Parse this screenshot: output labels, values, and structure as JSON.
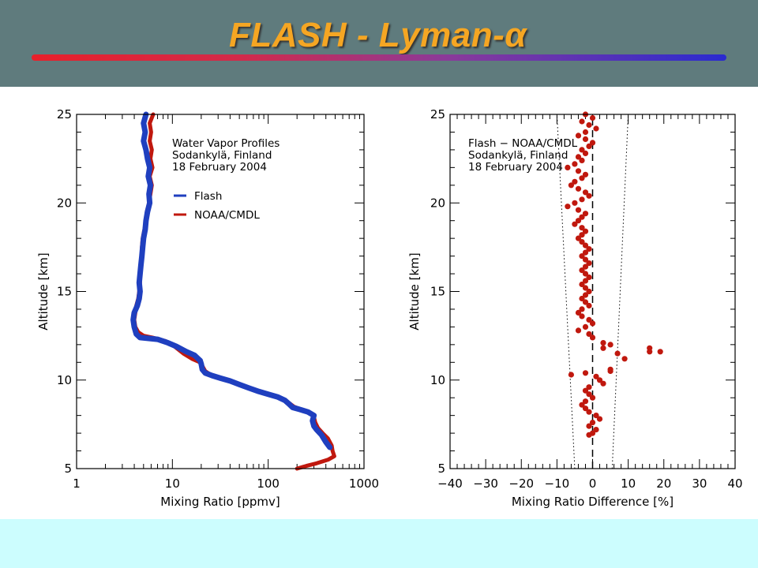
{
  "slide": {
    "title": "FLASH - Lyman-α",
    "colors": {
      "header_bg": "#5f7b7d",
      "title": "#f5a623",
      "footer_bg": "#ccfdfe",
      "flash": "#1f3fbf",
      "noaa": "#c0180e"
    }
  },
  "chart_data": [
    {
      "type": "line",
      "title": "",
      "annotation": [
        "Water Vapor Profiles",
        "Sodankylä, Finland",
        "18 February 2004"
      ],
      "xlabel": "Mixing Ratio [ppmv]",
      "ylabel": "Altitude [km]",
      "xscale": "log",
      "xlim": [
        1,
        1000
      ],
      "ylim": [
        5,
        25
      ],
      "xticks": [
        1,
        10,
        100,
        1000
      ],
      "xtick_labels": [
        "1",
        "10",
        "100",
        "1000"
      ],
      "yticks": [
        5,
        10,
        15,
        20,
        25
      ],
      "ytick_labels": [
        "5",
        "10",
        "15",
        "20",
        "25"
      ],
      "legend": "upper-left inside",
      "series": [
        {
          "name": "Flash",
          "color": "#1f3fbf",
          "points": [
            [
              5.3,
              25
            ],
            [
              5.0,
              24.5
            ],
            [
              5.2,
              24
            ],
            [
              5.0,
              23.5
            ],
            [
              5.3,
              23
            ],
            [
              5.5,
              22.5
            ],
            [
              5.8,
              22
            ],
            [
              5.6,
              21.5
            ],
            [
              5.9,
              21
            ],
            [
              5.7,
              20.5
            ],
            [
              5.8,
              20
            ],
            [
              5.5,
              19.5
            ],
            [
              5.3,
              19
            ],
            [
              5.2,
              18.5
            ],
            [
              5.0,
              18
            ],
            [
              4.9,
              17.5
            ],
            [
              4.8,
              17
            ],
            [
              4.7,
              16.5
            ],
            [
              4.6,
              16
            ],
            [
              4.5,
              15.5
            ],
            [
              4.6,
              15
            ],
            [
              4.5,
              14.6
            ],
            [
              4.3,
              14.2
            ],
            [
              4.0,
              13.8
            ],
            [
              3.9,
              13.4
            ],
            [
              4.0,
              13
            ],
            [
              4.2,
              12.6
            ],
            [
              4.6,
              12.4
            ],
            [
              7.0,
              12.3
            ],
            [
              9.0,
              12.1
            ],
            [
              11.0,
              11.9
            ],
            [
              14,
              11.6
            ],
            [
              17,
              11.4
            ],
            [
              19.5,
              11.1
            ],
            [
              20,
              10.9
            ],
            [
              20.5,
              10.6
            ],
            [
              22,
              10.4
            ],
            [
              26,
              10.25
            ],
            [
              32,
              10.1
            ],
            [
              40,
              9.95
            ],
            [
              50,
              9.75
            ],
            [
              63,
              9.55
            ],
            [
              80,
              9.35
            ],
            [
              100,
              9.2
            ],
            [
              125,
              9.05
            ],
            [
              150,
              8.85
            ],
            [
              165,
              8.65
            ],
            [
              180,
              8.45
            ],
            [
              210,
              8.35
            ],
            [
              260,
              8.2
            ],
            [
              300,
              8.0
            ],
            [
              290,
              7.7
            ],
            [
              300,
              7.4
            ],
            [
              320,
              7.2
            ],
            [
              360,
              6.9
            ],
            [
              400,
              6.5
            ],
            [
              440,
              6.2
            ]
          ]
        },
        {
          "name": "NOAA/CMDL",
          "color": "#c0180e",
          "points": [
            [
              6.3,
              25
            ],
            [
              5.8,
              24.5
            ],
            [
              6.0,
              24
            ],
            [
              5.8,
              23.5
            ],
            [
              6.1,
              23
            ],
            [
              5.9,
              22.5
            ],
            [
              6.2,
              22
            ],
            [
              5.8,
              21.5
            ],
            [
              6.1,
              21
            ],
            [
              5.9,
              20.5
            ],
            [
              5.7,
              20
            ],
            [
              5.4,
              19.5
            ],
            [
              5.3,
              19
            ],
            [
              5.1,
              18.5
            ],
            [
              4.9,
              18
            ],
            [
              4.8,
              17.5
            ],
            [
              4.8,
              17
            ],
            [
              4.7,
              16.5
            ],
            [
              4.6,
              16
            ],
            [
              4.6,
              15.5
            ],
            [
              4.5,
              15
            ],
            [
              4.4,
              14.6
            ],
            [
              4.2,
              14.2
            ],
            [
              4.1,
              13.8
            ],
            [
              4.0,
              13.4
            ],
            [
              4.1,
              13
            ],
            [
              4.4,
              12.7
            ],
            [
              5.0,
              12.5
            ],
            [
              6.2,
              12.4
            ],
            [
              8.5,
              12.2
            ],
            [
              10.5,
              11.9
            ],
            [
              13,
              11.5
            ],
            [
              16,
              11.2
            ],
            [
              19.5,
              11.0
            ],
            [
              20.5,
              10.8
            ],
            [
              22,
              10.5
            ],
            [
              25,
              10.3
            ],
            [
              30,
              10.15
            ],
            [
              38,
              10.0
            ],
            [
              48,
              9.8
            ],
            [
              60,
              9.6
            ],
            [
              75,
              9.4
            ],
            [
              95,
              9.25
            ],
            [
              120,
              9.1
            ],
            [
              145,
              8.9
            ],
            [
              165,
              8.7
            ],
            [
              185,
              8.5
            ],
            [
              230,
              8.3
            ],
            [
              280,
              8.1
            ],
            [
              300,
              7.9
            ],
            [
              310,
              7.6
            ],
            [
              330,
              7.3
            ],
            [
              370,
              7.0
            ],
            [
              420,
              6.7
            ],
            [
              460,
              6.3
            ],
            [
              470,
              6.0
            ],
            [
              490,
              5.7
            ],
            [
              420,
              5.5
            ],
            [
              320,
              5.3
            ],
            [
              250,
              5.15
            ],
            [
              200,
              5.0
            ]
          ]
        }
      ]
    },
    {
      "type": "scatter",
      "title": "",
      "annotation": [
        "Flash − NOAA/CMDL",
        "Sodankylä, Finland",
        "18 February 2004"
      ],
      "xlabel": "Mixing Ratio Difference [%]",
      "ylabel": "Altitude [km]",
      "xlim": [
        -40,
        40
      ],
      "ylim": [
        5,
        25
      ],
      "xticks": [
        -40,
        -30,
        -20,
        -10,
        0,
        10,
        20,
        30,
        40
      ],
      "xtick_labels": [
        "−40",
        "−30",
        "−20",
        "−10",
        "0",
        "10",
        "20",
        "30",
        "40"
      ],
      "yticks": [
        5,
        10,
        15,
        20,
        25
      ],
      "ytick_labels": [
        "5",
        "10",
        "15",
        "20",
        "25"
      ],
      "reference_lines": {
        "zero": {
          "x": [
            0,
            0
          ],
          "y": [
            5,
            25
          ],
          "style": "dashed"
        },
        "left_bound": {
          "x": [
            -5,
            -10
          ],
          "y": [
            5,
            25
          ],
          "style": "dotted"
        },
        "right_bound": {
          "x": [
            5.5,
            10
          ],
          "y": [
            5,
            25
          ],
          "style": "dotted"
        }
      },
      "series": [
        {
          "name": "",
          "color": "#c0180e",
          "points": [
            [
              -2,
              25
            ],
            [
              0,
              24.8
            ],
            [
              -3,
              24.6
            ],
            [
              -1,
              24.4
            ],
            [
              1,
              24.2
            ],
            [
              -2,
              24
            ],
            [
              -4,
              23.8
            ],
            [
              -2,
              23.6
            ],
            [
              0,
              23.4
            ],
            [
              -1,
              23.2
            ],
            [
              -3,
              23
            ],
            [
              -2,
              22.8
            ],
            [
              -4,
              22.6
            ],
            [
              -3,
              22.4
            ],
            [
              -5,
              22.2
            ],
            [
              -7,
              22
            ],
            [
              -4,
              21.8
            ],
            [
              -2,
              21.6
            ],
            [
              -3,
              21.4
            ],
            [
              -5,
              21.2
            ],
            [
              -6,
              21
            ],
            [
              -4,
              20.8
            ],
            [
              -2,
              20.6
            ],
            [
              -1,
              20.4
            ],
            [
              -3,
              20.2
            ],
            [
              -5,
              20
            ],
            [
              -7,
              19.8
            ],
            [
              -4,
              19.6
            ],
            [
              -2,
              19.4
            ],
            [
              -3,
              19.2
            ],
            [
              -4,
              19
            ],
            [
              -5,
              18.8
            ],
            [
              -3,
              18.6
            ],
            [
              -2,
              18.4
            ],
            [
              -3,
              18.2
            ],
            [
              -4,
              18
            ],
            [
              -3,
              17.8
            ],
            [
              -2,
              17.6
            ],
            [
              -1,
              17.4
            ],
            [
              -2,
              17.2
            ],
            [
              -3,
              17
            ],
            [
              -2,
              16.8
            ],
            [
              -1,
              16.6
            ],
            [
              -2,
              16.4
            ],
            [
              -3,
              16.2
            ],
            [
              -2,
              16
            ],
            [
              -1,
              15.8
            ],
            [
              -2,
              15.6
            ],
            [
              -3,
              15.4
            ],
            [
              -2,
              15.2
            ],
            [
              -1,
              15
            ],
            [
              -2,
              14.8
            ],
            [
              -3,
              14.6
            ],
            [
              -2,
              14.4
            ],
            [
              -1,
              14.2
            ],
            [
              -3,
              14
            ],
            [
              -4,
              13.8
            ],
            [
              -3,
              13.6
            ],
            [
              -1,
              13.4
            ],
            [
              0,
              13.2
            ],
            [
              -2,
              13
            ],
            [
              -4,
              12.8
            ],
            [
              -1,
              12.6
            ],
            [
              0,
              12.4
            ],
            [
              3,
              12.1
            ],
            [
              5,
              12
            ],
            [
              3,
              11.8
            ],
            [
              7,
              11.5
            ],
            [
              9,
              11.2
            ],
            [
              16,
              11.6
            ],
            [
              16,
              11.8
            ],
            [
              19,
              11.6
            ],
            [
              5,
              10.6
            ],
            [
              5,
              10.5
            ],
            [
              -6,
              10.3
            ],
            [
              -2,
              10.4
            ],
            [
              1,
              10.2
            ],
            [
              2,
              10
            ],
            [
              3,
              9.8
            ],
            [
              -1,
              9.6
            ],
            [
              -2,
              9.4
            ],
            [
              -1,
              9.2
            ],
            [
              0,
              9
            ],
            [
              -2,
              8.8
            ],
            [
              -3,
              8.6
            ],
            [
              -2,
              8.4
            ],
            [
              -1,
              8.2
            ],
            [
              1,
              8
            ],
            [
              2,
              7.8
            ],
            [
              0,
              7.6
            ],
            [
              -1,
              7.4
            ],
            [
              1,
              7.2
            ],
            [
              0,
              7
            ],
            [
              -1,
              6.9
            ]
          ]
        }
      ]
    }
  ]
}
